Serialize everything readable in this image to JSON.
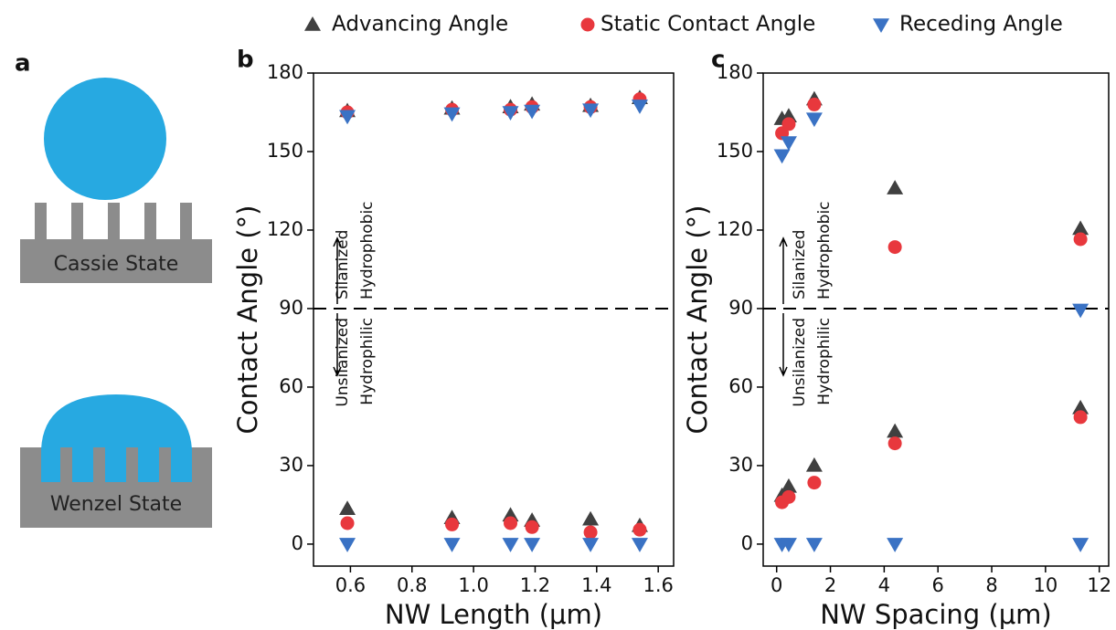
{
  "diagram": {
    "label": "a",
    "states": [
      "Cassie State",
      "Wenzel State"
    ]
  },
  "chart_data": [
    {
      "type": "scatter",
      "panel_label": "b",
      "x_label": "NW Length (μm)",
      "y_label": "Contact Angle (°)",
      "xlim": [
        0.48,
        1.65
      ],
      "ylim": [
        -8.4,
        180
      ],
      "xticks": [
        0.6,
        0.8,
        {
          "value": 1,
          "label": "1.0"
        },
        1.2,
        1.4,
        1.6
      ],
      "yticks": [
        0,
        30,
        60,
        90,
        120,
        150,
        180
      ],
      "hline": 90,
      "annotations": {
        "upper": [
          "Silanized",
          "Hydrophobic"
        ],
        "lower": [
          "Unsilanized",
          "Hydrophilic"
        ]
      },
      "series": [
        {
          "name": "Advancing Angle",
          "color": "#404040",
          "marker": "triangle-up",
          "x": [
            0.59,
            0.93,
            1.12,
            1.19,
            1.38,
            1.54,
            0.59,
            0.93,
            1.12,
            1.19,
            1.38,
            1.54
          ],
          "values": [
            165.5,
            166.5,
            167,
            168,
            167.5,
            170.5,
            13.5,
            10,
            11,
            9,
            9.5,
            7
          ]
        },
        {
          "name": "Static Contact Angle",
          "color": "#e8383d",
          "marker": "circle",
          "x": [
            0.59,
            0.93,
            1.12,
            1.19,
            1.38,
            1.54,
            0.59,
            0.93,
            1.12,
            1.19,
            1.38,
            1.54
          ],
          "values": [
            165,
            166,
            166,
            167,
            167,
            170,
            8,
            7.5,
            8,
            6.5,
            4.5,
            5.5
          ]
        },
        {
          "name": "Receding Angle",
          "color": "#3a72c4",
          "marker": "triangle-down",
          "x": [
            0.59,
            0.93,
            1.12,
            1.19,
            1.38,
            1.54,
            0.59,
            0.93,
            1.12,
            1.19,
            1.38,
            1.54
          ],
          "values": [
            163.5,
            164.5,
            165,
            165.5,
            166,
            167.5,
            0,
            0,
            0,
            0,
            0,
            0
          ]
        }
      ]
    },
    {
      "type": "scatter",
      "panel_label": "c",
      "x_label": "NW Spacing (μm)",
      "y_label": "Contact Angle (°)",
      "xlim": [
        -0.5,
        12.35
      ],
      "ylim": [
        -8.4,
        180
      ],
      "xticks": [
        0,
        2,
        4,
        6,
        8,
        10,
        12
      ],
      "yticks": [
        0,
        30,
        60,
        90,
        120,
        150,
        180
      ],
      "hline": 90,
      "annotations": {
        "upper": [
          "Silanized",
          "Hydrophobic"
        ],
        "lower": [
          "Unsilanized",
          "Hydrophilic"
        ]
      },
      "series": [
        {
          "color": "#404040",
          "marker": "triangle-up",
          "x": [
            0.2,
            0.45,
            1.4,
            4.4,
            11.3,
            0.2,
            0.45,
            1.4,
            4.4,
            11.3
          ],
          "values": [
            162.5,
            163.5,
            170,
            136,
            120.5,
            18.5,
            22,
            30,
            43,
            52
          ]
        },
        {
          "color": "#e8383d",
          "marker": "circle",
          "x": [
            0.2,
            0.45,
            1.4,
            4.4,
            11.3,
            0.2,
            0.45,
            1.4,
            4.4,
            11.3
          ],
          "values": [
            157,
            160.5,
            168,
            113.5,
            116.5,
            16,
            18,
            23.5,
            38.5,
            48.5
          ]
        },
        {
          "color": "#3a72c4",
          "marker": "triangle-down",
          "x": [
            0.2,
            0.45,
            1.4,
            11.3,
            0.2,
            0.45,
            1.4,
            4.4,
            11.3
          ],
          "values": [
            148.5,
            153.5,
            162.5,
            89.5,
            0,
            0,
            0,
            0,
            0
          ]
        }
      ]
    }
  ]
}
